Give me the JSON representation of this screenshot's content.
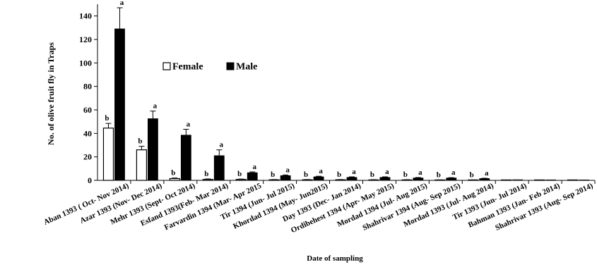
{
  "chart_data": {
    "type": "bar",
    "title": "",
    "xlabel": "Date of sampling",
    "ylabel": "No. of olive fruit fly in Traps",
    "ylim": [
      0,
      150
    ],
    "yticks": [
      "0",
      "20",
      "40",
      "60",
      "80",
      "100",
      "120",
      "140"
    ],
    "grid": false,
    "legend": {
      "placement": "top-center",
      "entries": [
        "Female",
        "Male"
      ]
    },
    "categories": [
      "Aban 1393 ( Oct- Nov 2014)",
      "Azar 1393 (Nov- Dec 2014)",
      "Mehr 1393 (Sept- Oct 2014)",
      "Esfand 1393(Feb- Mar 2014)",
      "Farvardin 1394 (Mar- Apr 2015",
      "Tir 1394 (Jun- Jul 2015)",
      "Khordad 1394 (May- Jun2015)",
      "Day 1393 (Dec- Jan 2014)",
      "Ordibehest 1394 (Apr- May 2015)",
      "Mordad 1394 (Jul- Aug 2015)",
      "Shahrivar 1394 (Aug- Sep 2015)",
      "Mordad 1393 (Jul- Aug 2014)",
      "Tir 1393 (Jun- Jul 2014)",
      "Bahman 1393 (Jan- Feb 2014)",
      "Shahrivar 1393 (Aug- Sep 2014)"
    ],
    "series": [
      {
        "name": "Female",
        "fill": "#ffffff",
        "values": [
          44.5,
          26,
          1.5,
          0.8,
          0.8,
          0.5,
          0.5,
          0.5,
          0.4,
          0.4,
          0.3,
          0.3,
          0.2,
          0.2,
          0.1
        ],
        "errors": [
          4,
          3,
          0.5,
          0.4,
          0.3,
          0.2,
          0.2,
          0.2,
          0.2,
          0.2,
          0.1,
          0.1,
          0,
          0,
          0
        ],
        "labels": [
          "b",
          "b",
          "b",
          "b",
          "b",
          "b",
          "b",
          "b",
          "b",
          "b",
          "b",
          "b",
          "",
          "",
          ""
        ]
      },
      {
        "name": "Male",
        "fill": "#000000",
        "values": [
          129,
          52.5,
          38.5,
          21,
          6.5,
          4,
          3,
          2.5,
          2.5,
          2,
          2,
          1.5,
          0.5,
          0.4,
          0.3
        ],
        "errors": [
          18,
          6.5,
          5,
          5,
          0.7,
          0.6,
          0.5,
          0.5,
          0.5,
          0.4,
          0.3,
          0.3,
          0,
          0,
          0
        ],
        "labels": [
          "a",
          "a",
          "a",
          "a",
          "a",
          "a",
          "a",
          "a",
          "a",
          "a",
          "a",
          "a",
          "",
          "",
          ""
        ]
      }
    ]
  }
}
